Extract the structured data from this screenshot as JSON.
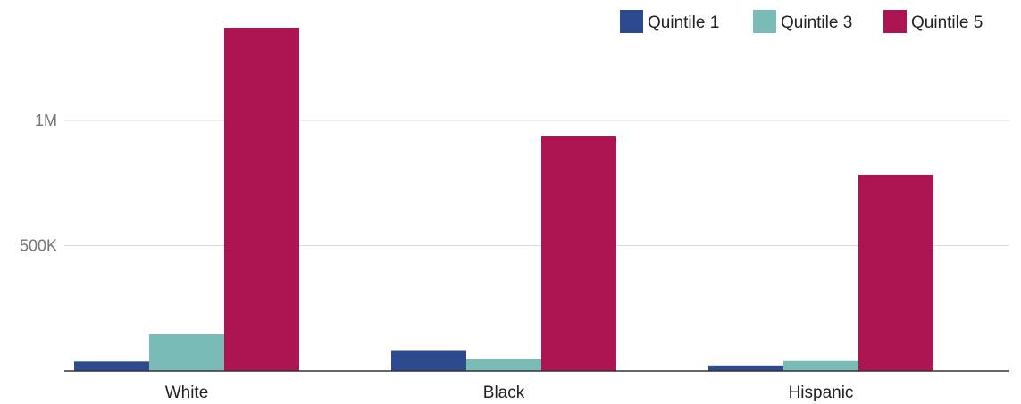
{
  "chart_data": {
    "type": "bar",
    "categories": [
      "White",
      "Black",
      "Hispanic"
    ],
    "series": [
      {
        "name": "Quintile 1",
        "color": "#2e4a8e",
        "values": [
          38000,
          80000,
          22000
        ]
      },
      {
        "name": "Quintile 3",
        "color": "#79bbb7",
        "values": [
          147000,
          48000,
          40000
        ]
      },
      {
        "name": "Quintile 5",
        "color": "#ad1452",
        "values": [
          1370000,
          936000,
          783000
        ]
      }
    ],
    "y_ticks": [
      {
        "value": 500000,
        "label": "500K"
      },
      {
        "value": 1000000,
        "label": "1M"
      }
    ],
    "ylim": [
      0,
      1370000
    ],
    "grid": true,
    "legend_position": "top-right"
  }
}
